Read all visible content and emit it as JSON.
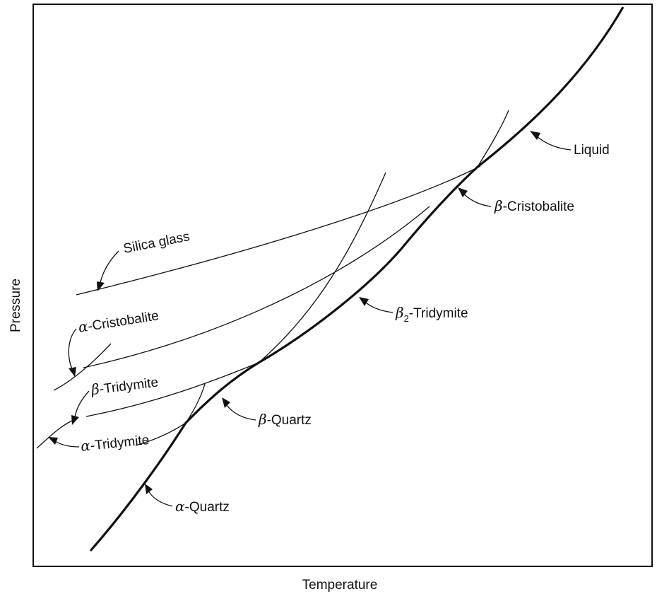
{
  "axes": {
    "xlabel": "Temperature",
    "ylabel": "Pressure"
  },
  "phase_labels": {
    "liquid": "Liquid",
    "beta_cristobalite": "β-Cristobalite",
    "silica_glass": "Silica glass",
    "alpha_cristobalite": "α-Cristobalite",
    "beta2_tridymite": "β2-Tridymite",
    "beta_tridymite": "β-Tridymite",
    "alpha_tridymite": "α-Tridymite",
    "beta_quartz": "β-Quartz",
    "alpha_quartz": "α-Quartz"
  },
  "label_parts": {
    "beta": "β",
    "alpha": "α",
    "sub2": "2",
    "cristobalite": "-Cristobalite",
    "tridymite": "-Tridymite",
    "quartz": "-Quartz"
  },
  "colors": {
    "ink": "#111111",
    "background": "#ffffff"
  }
}
